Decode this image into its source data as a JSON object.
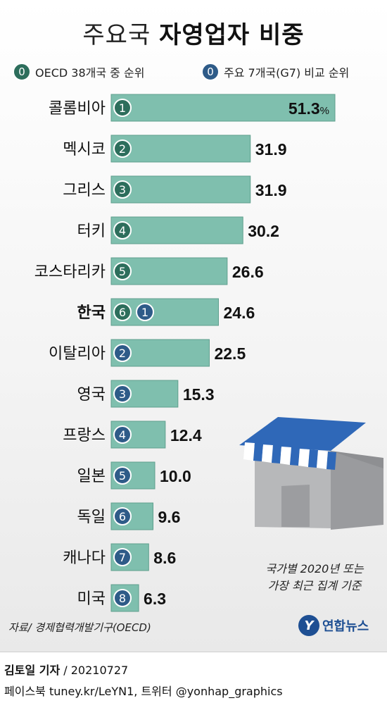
{
  "title_light": "주요국",
  "title_bold": "자영업자 비중",
  "legend": {
    "oecd_badge": "0",
    "oecd_label": "OECD 38개국 중 순위",
    "g7_badge": "0",
    "g7_label": "주요 7개국(G7) 비교 순위"
  },
  "note_line1": "국가별 2020년 또는",
  "note_line2": "가장 최근 집계 기준",
  "source": "자료/ 경제협력개발기구(OECD)",
  "logo_mark": "Y",
  "logo_text": "연합뉴스",
  "credit_name": "김토일 기자",
  "credit_date": "/ 20210727",
  "sns": "페이스북 tuney.kr/LeYN1, 트위터 @yonhap_graphics",
  "colors": {
    "bar": "#7fbfae",
    "bar_stroke": "#5f9f8d",
    "oecd_badge": "#2d6e5c",
    "g7_badge": "#2e5b88",
    "awning_blue": "#2f68b8",
    "awning_white": "#ffffff",
    "building": "#a9aaac"
  },
  "chart_data": {
    "type": "bar",
    "orientation": "horizontal",
    "unit": "%",
    "categories": [
      "콜롬비아",
      "멕시코",
      "그리스",
      "터키",
      "코스타리카",
      "한국",
      "이탈리아",
      "영국",
      "프랑스",
      "일본",
      "독일",
      "캐나다",
      "미국"
    ],
    "values": [
      51.3,
      31.9,
      31.9,
      30.2,
      26.6,
      24.6,
      22.5,
      15.3,
      12.4,
      10.0,
      9.6,
      8.6,
      6.3
    ],
    "value_labels": [
      "51.3",
      "31.9",
      "31.9",
      "30.2",
      "26.6",
      "24.6",
      "22.5",
      "15.3",
      "12.4",
      "10.0",
      "9.6",
      "8.6",
      "6.3"
    ],
    "oecd_rank": [
      "1",
      "2",
      "3",
      "4",
      "5",
      "6",
      null,
      null,
      null,
      null,
      null,
      null,
      null
    ],
    "g7_rank": [
      null,
      null,
      null,
      null,
      null,
      "1",
      "2",
      "3",
      "4",
      "5",
      "6",
      "7",
      "8"
    ],
    "highlight": "한국"
  }
}
